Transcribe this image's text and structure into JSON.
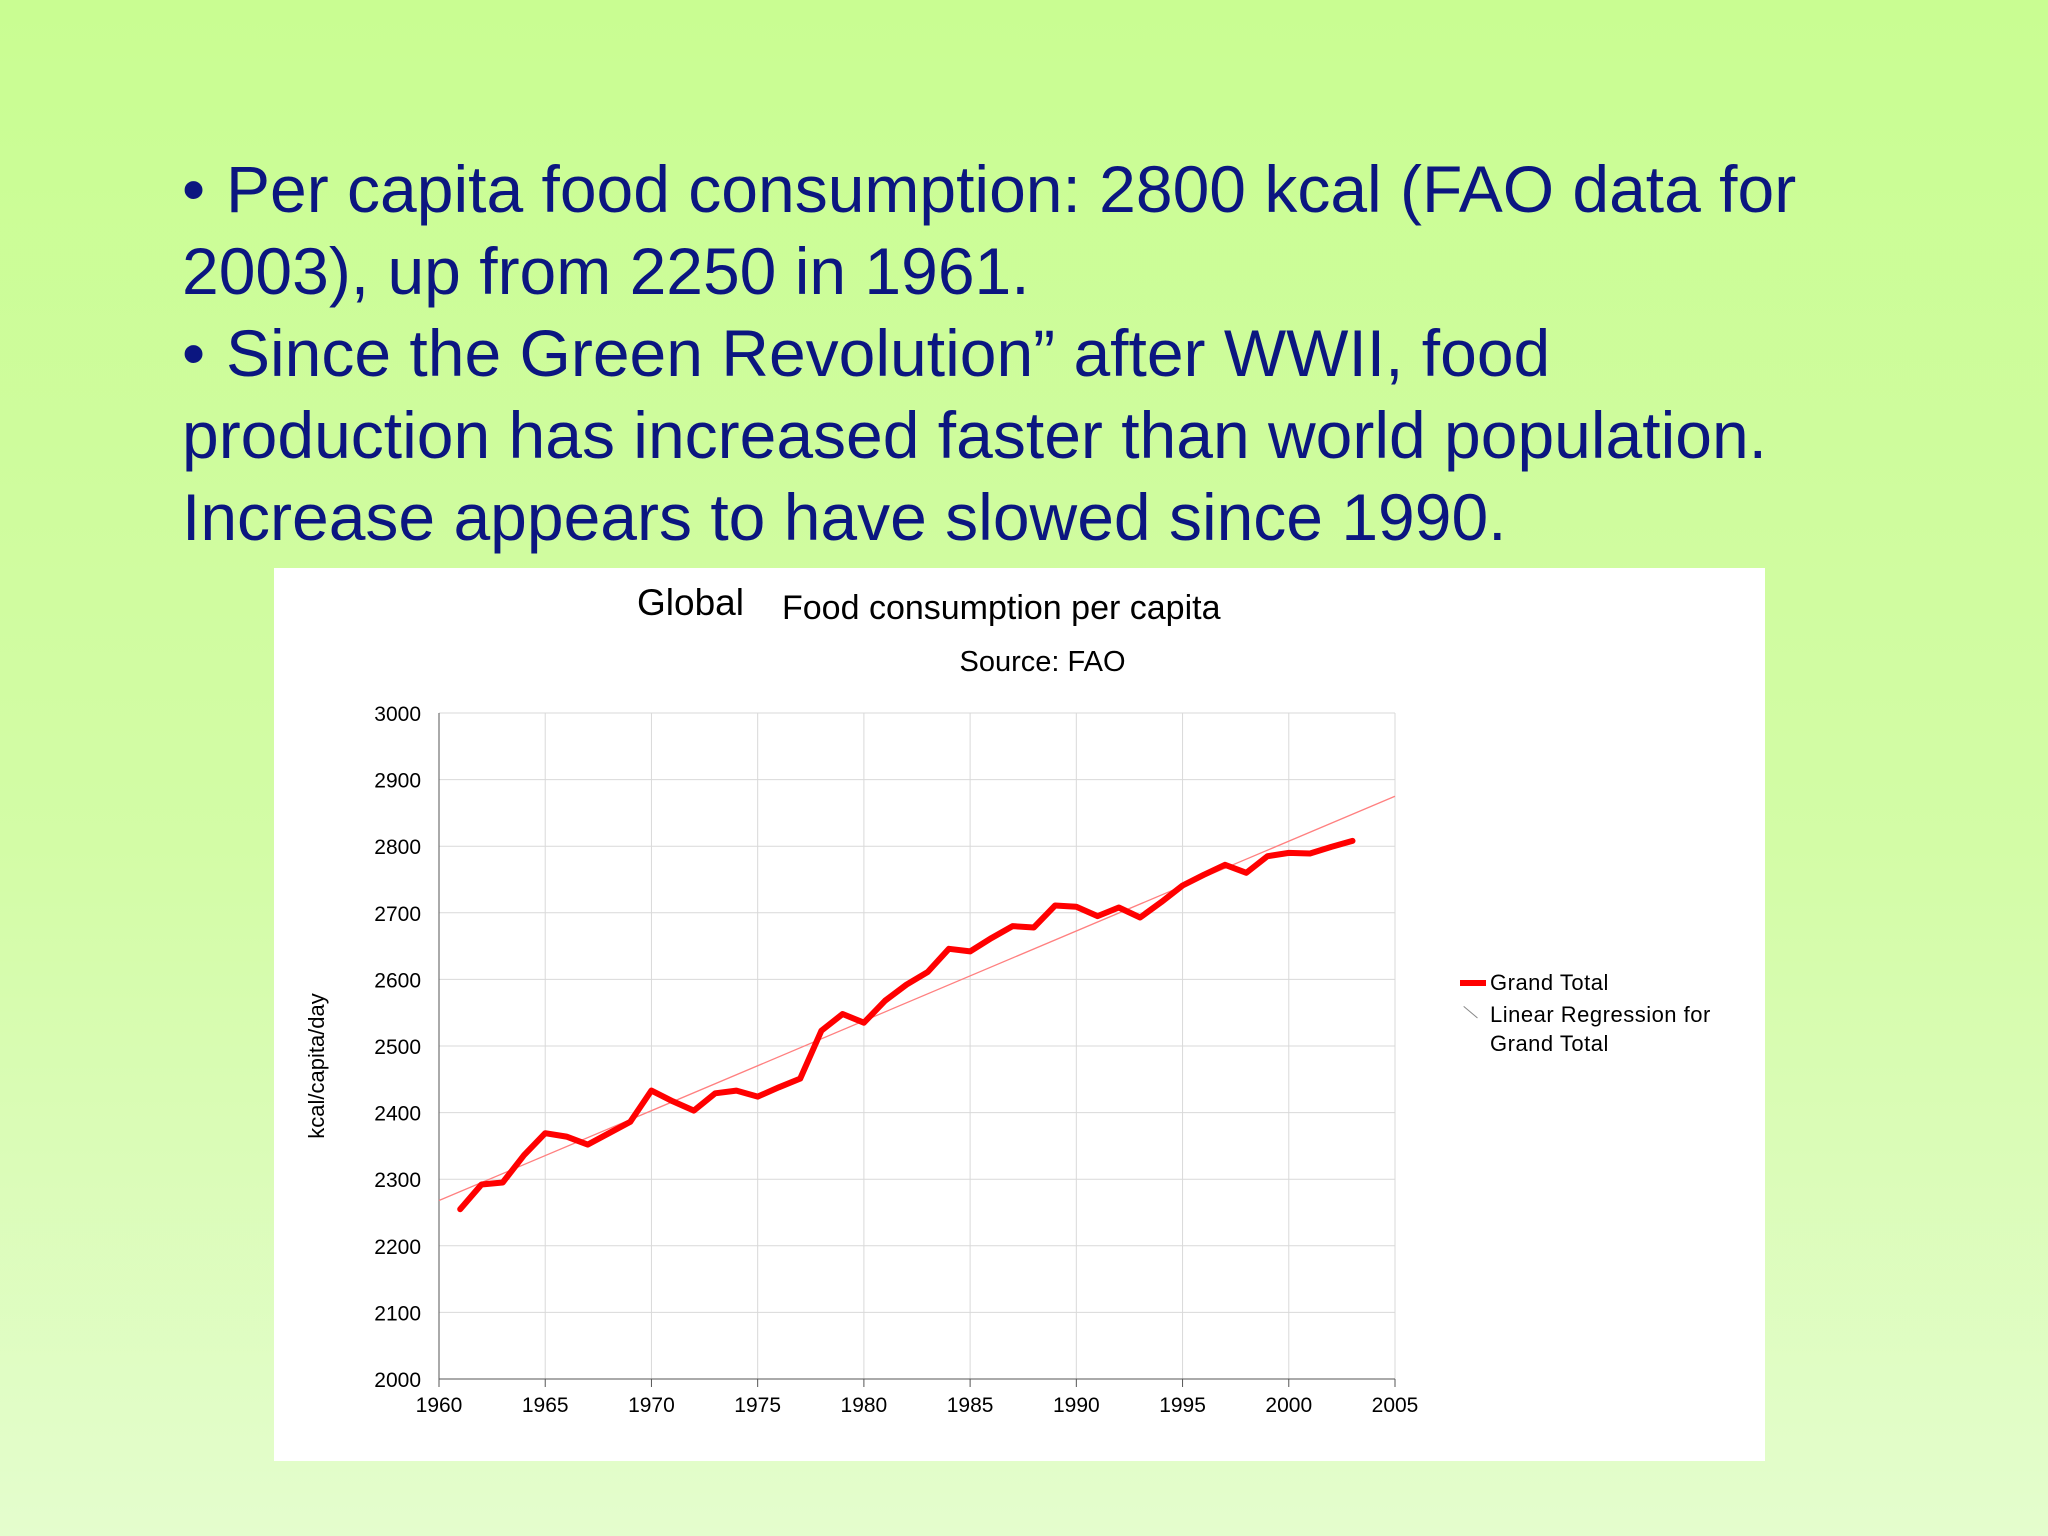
{
  "slide": {
    "bullets": [
      {
        "dot": "•",
        "lines": [
          "Per capita food consumption: 2800 kcal (FAO data for",
          "2003), up from 2250 in 1961."
        ]
      },
      {
        "dot": "•",
        "lines": [
          "Since the Green Revolution” after WWII, food",
          "production has increased faster than world population.",
          "Increase appears to have slowed since 1990."
        ]
      }
    ]
  },
  "colors": {
    "text": "#0b1680",
    "series": "#ff0000",
    "regression": "#ff8080",
    "grid": "#d9d9d9"
  },
  "chart_data": {
    "type": "line",
    "title_part1": "Global",
    "title_part2": "Food consumption per capita",
    "subtitle": "Source: FAO",
    "xlabel": "",
    "ylabel": "kcal/capita/day",
    "xlim": [
      1960,
      2005
    ],
    "ylim": [
      2000,
      3000
    ],
    "xticks": [
      1960,
      1965,
      1970,
      1975,
      1980,
      1985,
      1990,
      1995,
      2000,
      2005
    ],
    "yticks": [
      2000,
      2100,
      2200,
      2300,
      2400,
      2500,
      2600,
      2700,
      2800,
      2900,
      3000
    ],
    "grid": true,
    "legend_position": "right",
    "series": [
      {
        "name": "Grand Total",
        "x": [
          1961,
          1962,
          1963,
          1964,
          1965,
          1966,
          1967,
          1968,
          1969,
          1970,
          1971,
          1972,
          1973,
          1974,
          1975,
          1976,
          1977,
          1978,
          1979,
          1980,
          1981,
          1982,
          1983,
          1984,
          1985,
          1986,
          1987,
          1988,
          1989,
          1990,
          1991,
          1992,
          1993,
          1994,
          1995,
          1996,
          1997,
          1998,
          1999,
          2000,
          2001,
          2002,
          2003
        ],
        "y": [
          2255,
          2292,
          2295,
          2336,
          2369,
          2364,
          2352,
          2369,
          2386,
          2433,
          2417,
          2403,
          2429,
          2433,
          2424,
          2438,
          2451,
          2523,
          2548,
          2535,
          2568,
          2592,
          2611,
          2646,
          2642,
          2662,
          2680,
          2678,
          2711,
          2709,
          2695,
          2708,
          2693,
          2716,
          2741,
          2757,
          2772,
          2760,
          2785,
          2790,
          2789,
          2799,
          2808
        ]
      },
      {
        "name": "Linear Regression for Grand Total",
        "x": [
          1960,
          2005
        ],
        "y": [
          2268,
          2875
        ]
      }
    ]
  }
}
